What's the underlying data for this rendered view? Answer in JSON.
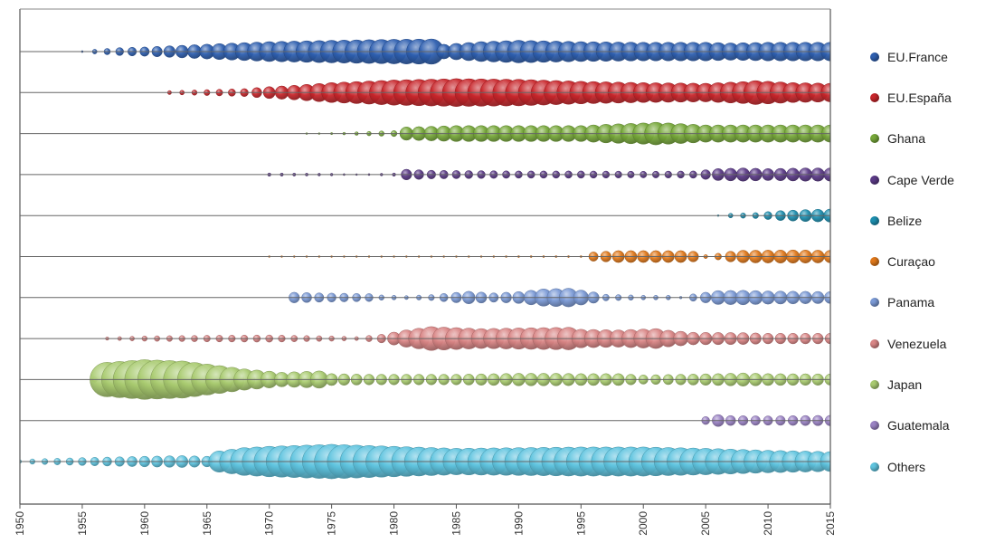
{
  "chart_data": {
    "type": "bubble-timeline",
    "title": "",
    "xlabel": "",
    "ylabel": "",
    "x_range": [
      1950,
      2015
    ],
    "x_ticks": [
      "1950",
      "1955",
      "1960",
      "1965",
      "1970",
      "1975",
      "1980",
      "1985",
      "1990",
      "1995",
      "2000",
      "2005",
      "2010",
      "2015"
    ],
    "value_unit": "relative bubble size",
    "series": [
      {
        "name": "EU.France",
        "color": "#2e5fb0",
        "start": 1955,
        "keys": [
          [
            1955,
            3
          ],
          [
            1956,
            7
          ],
          [
            1958,
            12
          ],
          [
            1960,
            14
          ],
          [
            1963,
            19
          ],
          [
            1966,
            24
          ],
          [
            1970,
            30
          ],
          [
            1975,
            34
          ],
          [
            1980,
            37
          ],
          [
            1983,
            38
          ],
          [
            1984,
            22
          ],
          [
            1987,
            30
          ],
          [
            1990,
            34
          ],
          [
            1995,
            30
          ],
          [
            2000,
            28
          ],
          [
            2005,
            28
          ],
          [
            2007,
            26
          ],
          [
            2010,
            28
          ],
          [
            2015,
            28
          ]
        ]
      },
      {
        "name": "EU.España",
        "color": "#c8262b",
        "start": 1962,
        "keys": [
          [
            1962,
            6
          ],
          [
            1965,
            9
          ],
          [
            1968,
            12
          ],
          [
            1970,
            18
          ],
          [
            1972,
            22
          ],
          [
            1975,
            30
          ],
          [
            1980,
            38
          ],
          [
            1985,
            42
          ],
          [
            1990,
            40
          ],
          [
            1995,
            34
          ],
          [
            2000,
            30
          ],
          [
            2005,
            28
          ],
          [
            2008,
            33
          ],
          [
            2009,
            36
          ],
          [
            2012,
            30
          ],
          [
            2015,
            28
          ]
        ]
      },
      {
        "name": "Ghana",
        "color": "#77a83a",
        "start": 1973,
        "keys": [
          [
            1973,
            2
          ],
          [
            1976,
            4
          ],
          [
            1979,
            8
          ],
          [
            1980,
            9
          ],
          [
            1981,
            20
          ],
          [
            1985,
            24
          ],
          [
            1990,
            24
          ],
          [
            1995,
            24
          ],
          [
            1997,
            28
          ],
          [
            2000,
            32
          ],
          [
            2001,
            34
          ],
          [
            2003,
            30
          ],
          [
            2005,
            26
          ],
          [
            2010,
            26
          ],
          [
            2015,
            26
          ]
        ]
      },
      {
        "name": "Cape Verde",
        "color": "#5b3a87",
        "start": 1970,
        "keys": [
          [
            1970,
            5
          ],
          [
            1975,
            4
          ],
          [
            1977,
            2
          ],
          [
            1980,
            5
          ],
          [
            1981,
            16
          ],
          [
            1983,
            13
          ],
          [
            1990,
            11
          ],
          [
            1995,
            11
          ],
          [
            2000,
            10
          ],
          [
            2004,
            11
          ],
          [
            2006,
            18
          ],
          [
            2008,
            20
          ],
          [
            2010,
            18
          ],
          [
            2013,
            20
          ],
          [
            2015,
            20
          ]
        ]
      },
      {
        "name": "Belize",
        "color": "#1d8fb0",
        "start": 2006,
        "keys": [
          [
            2006,
            2
          ],
          [
            2007,
            7
          ],
          [
            2009,
            9
          ],
          [
            2011,
            15
          ],
          [
            2013,
            18
          ],
          [
            2015,
            20
          ]
        ]
      },
      {
        "name": "Curaçao",
        "color": "#e0781a",
        "start": 1970,
        "keys": [
          [
            1970,
            2
          ],
          [
            1980,
            2
          ],
          [
            1990,
            3
          ],
          [
            1995,
            3
          ],
          [
            1996,
            14
          ],
          [
            1998,
            18
          ],
          [
            2000,
            18
          ],
          [
            2003,
            18
          ],
          [
            2004,
            16
          ],
          [
            2005,
            6
          ],
          [
            2006,
            10
          ],
          [
            2007,
            16
          ],
          [
            2008,
            19
          ],
          [
            2012,
            20
          ],
          [
            2015,
            19
          ]
        ]
      },
      {
        "name": "Panama",
        "color": "#7b9ad6",
        "start": 1972,
        "keys": [
          [
            1972,
            16
          ],
          [
            1974,
            14
          ],
          [
            1978,
            12
          ],
          [
            1979,
            8
          ],
          [
            1981,
            6
          ],
          [
            1983,
            9
          ],
          [
            1986,
            19
          ],
          [
            1988,
            14
          ],
          [
            1990,
            18
          ],
          [
            1992,
            26
          ],
          [
            1994,
            28
          ],
          [
            1996,
            17
          ],
          [
            1997,
            10
          ],
          [
            2000,
            7
          ],
          [
            2002,
            7
          ],
          [
            2003,
            4
          ],
          [
            2004,
            11
          ],
          [
            2006,
            21
          ],
          [
            2008,
            22
          ],
          [
            2010,
            20
          ],
          [
            2015,
            18
          ]
        ]
      },
      {
        "name": "Venezuela",
        "color": "#d98585",
        "start": 1957,
        "keys": [
          [
            1957,
            5
          ],
          [
            1960,
            8
          ],
          [
            1965,
            10
          ],
          [
            1970,
            11
          ],
          [
            1975,
            8
          ],
          [
            1977,
            6
          ],
          [
            1979,
            13
          ],
          [
            1981,
            26
          ],
          [
            1983,
            36
          ],
          [
            1987,
            30
          ],
          [
            1990,
            32
          ],
          [
            1994,
            34
          ],
          [
            1995,
            28
          ],
          [
            1998,
            26
          ],
          [
            2001,
            30
          ],
          [
            2002,
            25
          ],
          [
            2004,
            19
          ],
          [
            2008,
            18
          ],
          [
            2010,
            16
          ],
          [
            2015,
            16
          ]
        ]
      },
      {
        "name": "Japan",
        "color": "#a9cb70",
        "start": 1956,
        "keys": [
          [
            1956,
            8
          ],
          [
            1957,
            52
          ],
          [
            1960,
            60
          ],
          [
            1963,
            56
          ],
          [
            1966,
            42
          ],
          [
            1968,
            32
          ],
          [
            1971,
            22
          ],
          [
            1974,
            26
          ],
          [
            1975,
            18
          ],
          [
            1978,
            16
          ],
          [
            1980,
            16
          ],
          [
            1985,
            16
          ],
          [
            1990,
            19
          ],
          [
            1993,
            19
          ],
          [
            1995,
            18
          ],
          [
            1998,
            18
          ],
          [
            2000,
            14
          ],
          [
            2003,
            16
          ],
          [
            2006,
            18
          ],
          [
            2008,
            20
          ],
          [
            2010,
            18
          ],
          [
            2015,
            17
          ]
        ]
      },
      {
        "name": "Guatemala",
        "color": "#9a82c4",
        "start": 2005,
        "keys": [
          [
            2005,
            12
          ],
          [
            2006,
            18
          ],
          [
            2007,
            15
          ],
          [
            2010,
            14
          ],
          [
            2015,
            16
          ]
        ]
      },
      {
        "name": "Others",
        "color": "#5fc4df",
        "start": 1950,
        "keys": [
          [
            1950,
            5
          ],
          [
            1951,
            8
          ],
          [
            1955,
            12
          ],
          [
            1960,
            16
          ],
          [
            1963,
            18
          ],
          [
            1965,
            16
          ],
          [
            1966,
            32
          ],
          [
            1968,
            42
          ],
          [
            1970,
            46
          ],
          [
            1975,
            52
          ],
          [
            1980,
            46
          ],
          [
            1985,
            40
          ],
          [
            1990,
            42
          ],
          [
            1995,
            44
          ],
          [
            2000,
            44
          ],
          [
            2005,
            40
          ],
          [
            2010,
            34
          ],
          [
            2015,
            30
          ]
        ]
      }
    ]
  }
}
